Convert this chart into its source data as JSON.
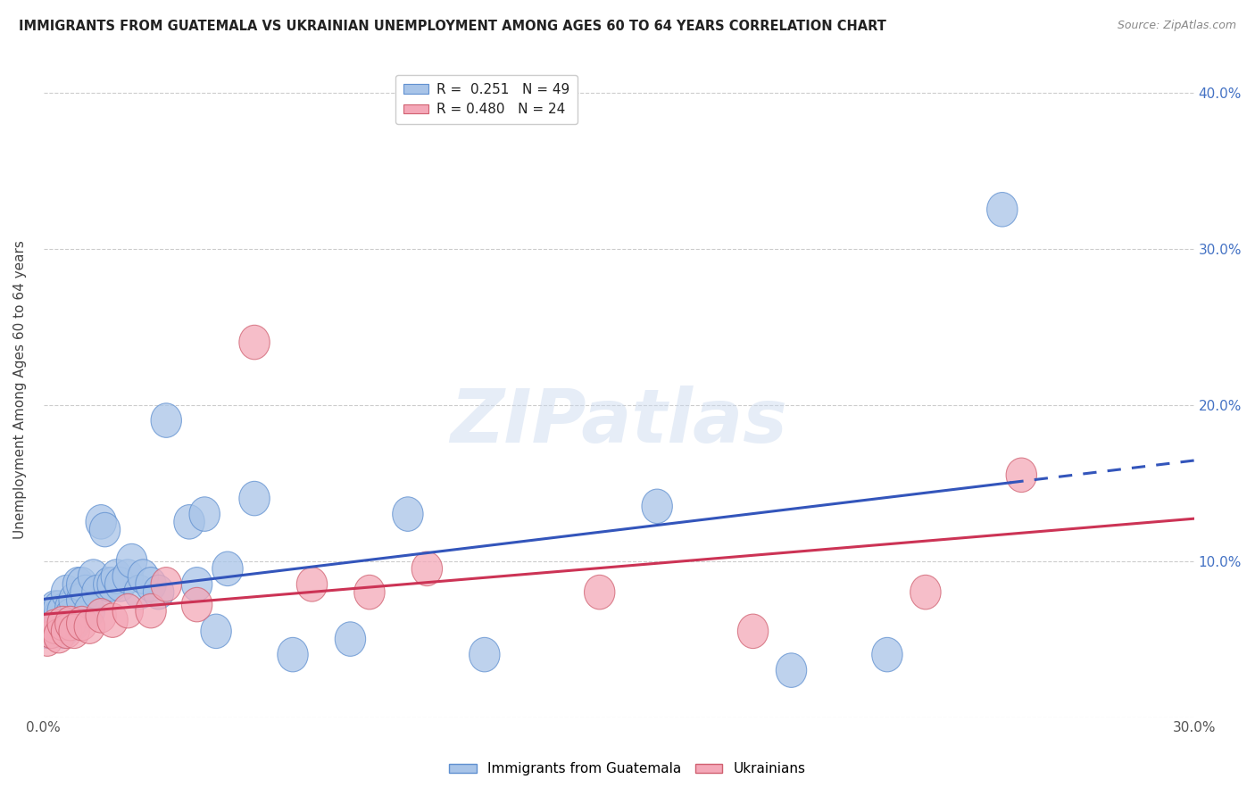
{
  "title": "IMMIGRANTS FROM GUATEMALA VS UKRAINIAN UNEMPLOYMENT AMONG AGES 60 TO 64 YEARS CORRELATION CHART",
  "source": "Source: ZipAtlas.com",
  "xlabel": "",
  "ylabel": "Unemployment Among Ages 60 to 64 years",
  "xlim": [
    0,
    0.3
  ],
  "ylim": [
    0,
    0.42
  ],
  "xticks": [
    0.0,
    0.05,
    0.1,
    0.15,
    0.2,
    0.25,
    0.3
  ],
  "xtick_labels": [
    "0.0%",
    "",
    "",
    "",
    "",
    "",
    "30.0%"
  ],
  "yticks": [
    0.0,
    0.1,
    0.2,
    0.3,
    0.4
  ],
  "ytick_labels_right": [
    "",
    "10.0%",
    "20.0%",
    "30.0%",
    "40.0%"
  ],
  "blue_color": "#a8c4e8",
  "pink_color": "#f4a8b8",
  "blue_edge_color": "#6090d0",
  "pink_edge_color": "#d06070",
  "blue_line_color": "#3355bb",
  "pink_line_color": "#cc3355",
  "blue_scatter_x": [
    0.001,
    0.002,
    0.002,
    0.003,
    0.003,
    0.004,
    0.004,
    0.005,
    0.005,
    0.006,
    0.006,
    0.007,
    0.007,
    0.008,
    0.008,
    0.009,
    0.01,
    0.01,
    0.011,
    0.012,
    0.013,
    0.014,
    0.015,
    0.016,
    0.017,
    0.018,
    0.019,
    0.02,
    0.022,
    0.023,
    0.025,
    0.026,
    0.028,
    0.03,
    0.032,
    0.038,
    0.04,
    0.042,
    0.045,
    0.048,
    0.055,
    0.065,
    0.08,
    0.095,
    0.115,
    0.16,
    0.195,
    0.22,
    0.25
  ],
  "blue_scatter_y": [
    0.055,
    0.065,
    0.055,
    0.07,
    0.06,
    0.065,
    0.07,
    0.055,
    0.068,
    0.06,
    0.08,
    0.07,
    0.065,
    0.075,
    0.06,
    0.085,
    0.075,
    0.085,
    0.08,
    0.068,
    0.09,
    0.08,
    0.125,
    0.12,
    0.085,
    0.085,
    0.09,
    0.085,
    0.09,
    0.1,
    0.08,
    0.09,
    0.085,
    0.08,
    0.19,
    0.125,
    0.085,
    0.13,
    0.055,
    0.095,
    0.14,
    0.04,
    0.05,
    0.13,
    0.04,
    0.135,
    0.03,
    0.04,
    0.325
  ],
  "pink_scatter_x": [
    0.001,
    0.002,
    0.003,
    0.004,
    0.005,
    0.006,
    0.007,
    0.008,
    0.01,
    0.012,
    0.015,
    0.018,
    0.022,
    0.028,
    0.032,
    0.04,
    0.055,
    0.07,
    0.085,
    0.1,
    0.145,
    0.185,
    0.23,
    0.255
  ],
  "pink_scatter_y": [
    0.05,
    0.055,
    0.058,
    0.052,
    0.06,
    0.055,
    0.06,
    0.055,
    0.06,
    0.058,
    0.065,
    0.062,
    0.068,
    0.068,
    0.085,
    0.072,
    0.24,
    0.085,
    0.08,
    0.095,
    0.08,
    0.055,
    0.08,
    0.155
  ],
  "watermark": "ZIPatlas",
  "background_color": "#ffffff",
  "blue_line_x_solid_end": 0.252,
  "blue_line_x_dash_end": 0.3,
  "pink_line_x_end": 0.3
}
